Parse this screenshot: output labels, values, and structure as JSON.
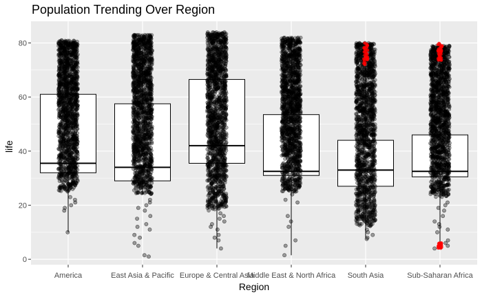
{
  "chart_data": {
    "type": "boxplot",
    "title": "Population Trending Over Region",
    "xlabel": "Region",
    "ylabel": "life",
    "ylim": [
      -2,
      88
    ],
    "yticks": [
      0,
      20,
      40,
      60,
      80
    ],
    "categories": [
      "America",
      "East Asia & Pacific",
      "Europe & Central Asia",
      "Middle East & North Africa",
      "South Asia",
      "Sub-Saharan Africa"
    ],
    "boxes": [
      {
        "category": "America",
        "whisker_low": 10,
        "q1": 32,
        "median": 35.5,
        "q3": 61,
        "whisker_high": 80,
        "jitter_range": [
          25,
          81
        ],
        "outliers": [
          10,
          18,
          19,
          20,
          21,
          22,
          23
        ]
      },
      {
        "category": "East Asia & Pacific",
        "whisker_low": 24,
        "q1": 29,
        "median": 34,
        "q3": 57.5,
        "whisker_high": 83,
        "jitter_range": [
          24,
          83
        ],
        "outliers": [
          1,
          1.5,
          5,
          6,
          8,
          9,
          11,
          12,
          13,
          15,
          16,
          18,
          19,
          20,
          21,
          22
        ]
      },
      {
        "category": "Europe & Central Asia",
        "whisker_low": 4,
        "q1": 35.5,
        "median": 42,
        "q3": 66.5,
        "whisker_high": 84,
        "jitter_range": [
          18,
          84
        ],
        "outliers": [
          4,
          7,
          8,
          9,
          11,
          12,
          13,
          14,
          15,
          16,
          17
        ]
      },
      {
        "category": "Middle East & North Africa",
        "whisker_low": 1.5,
        "q1": 31,
        "median": 32.5,
        "q3": 53.5,
        "whisker_high": 82,
        "jitter_range": [
          25,
          82
        ],
        "outliers": [
          1.5,
          5,
          7,
          12,
          14,
          16,
          21,
          22,
          24
        ]
      },
      {
        "category": "South Asia",
        "whisker_low": 8,
        "q1": 27,
        "median": 33,
        "q3": 44,
        "whisker_high": 80,
        "jitter_range": [
          12,
          80
        ],
        "outliers": [
          7.5,
          8,
          9,
          10,
          11
        ]
      },
      {
        "category": "Sub-Saharan Africa",
        "whisker_low": 4,
        "q1": 30.5,
        "median": 32.5,
        "q3": 46,
        "whisker_high": 80,
        "jitter_range": [
          23,
          79
        ],
        "outliers": [
          4,
          5,
          6,
          7,
          10,
          11,
          12,
          13,
          14,
          16,
          18,
          19,
          20,
          21
        ]
      }
    ],
    "highlight_points": {
      "color": "#ff0000",
      "groups": [
        {
          "category": "South Asia",
          "y_range": [
            72,
            80
          ]
        },
        {
          "category": "Sub-Saharan Africa",
          "y_range": [
            72,
            80
          ]
        },
        {
          "category": "Sub-Saharan Africa",
          "y_range": [
            4,
            6
          ]
        }
      ]
    },
    "colors": {
      "panel_background": "#ebebeb",
      "grid": "#ffffff",
      "box_fill": "#ffffff",
      "box_line": "#000000",
      "point": "#000000",
      "axis_text": "#4d4d4d"
    },
    "grid": true
  }
}
